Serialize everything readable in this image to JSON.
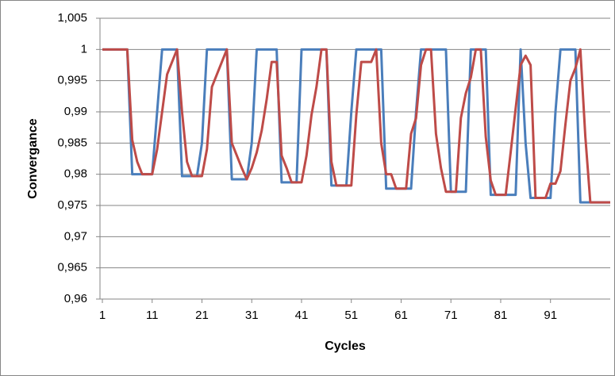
{
  "chart_data": {
    "type": "line",
    "x_label": "Cycles",
    "y_label": "Convergance",
    "x": [
      1,
      2,
      3,
      4,
      5,
      6,
      7,
      8,
      9,
      10,
      11,
      12,
      13,
      14,
      15,
      16,
      17,
      18,
      19,
      20,
      21,
      22,
      23,
      24,
      25,
      26,
      27,
      28,
      29,
      30,
      31,
      32,
      33,
      34,
      35,
      36,
      37,
      38,
      39,
      40,
      41,
      42,
      43,
      44,
      45,
      46,
      47,
      48,
      49,
      50,
      51,
      52,
      53,
      54,
      55,
      56,
      57,
      58,
      59,
      60,
      61,
      62,
      63,
      64,
      65,
      66,
      67,
      68,
      69,
      70,
      71,
      72,
      73,
      74,
      75,
      76,
      77,
      78,
      79,
      80,
      81,
      82,
      83,
      84,
      85,
      86,
      87,
      88,
      89,
      90,
      91,
      92,
      93,
      94,
      95,
      96,
      97,
      98,
      99,
      100,
      101,
      102,
      103
    ],
    "xlim": [
      1,
      103
    ],
    "xticks": [
      1,
      11,
      21,
      31,
      41,
      51,
      61,
      71,
      81,
      91
    ],
    "ylim": [
      0.96,
      1.005
    ],
    "yticks": [
      {
        "value": 0.96,
        "label": "0,96"
      },
      {
        "value": 0.965,
        "label": "0,965"
      },
      {
        "value": 0.97,
        "label": "0,97"
      },
      {
        "value": 0.975,
        "label": "0,975"
      },
      {
        "value": 0.98,
        "label": "0,98"
      },
      {
        "value": 0.985,
        "label": "0,985"
      },
      {
        "value": 0.99,
        "label": "0,99"
      },
      {
        "value": 0.995,
        "label": "0,995"
      },
      1,
      {
        "value": 1.005,
        "label": "1,005"
      }
    ],
    "grid": true,
    "series": [
      {
        "color": "#4a7ebb",
        "values": [
          1,
          1,
          1,
          1,
          1,
          1,
          0.98,
          0.98,
          0.98,
          0.98,
          0.98,
          0.99,
          1,
          1,
          1,
          1,
          0.9797,
          0.9797,
          0.9797,
          0.9797,
          0.985,
          1,
          1,
          1,
          1,
          1,
          0.9792,
          0.9792,
          0.9792,
          0.9792,
          0.985,
          1,
          1,
          1,
          1,
          1,
          0.9787,
          0.9787,
          0.9787,
          0.9787,
          1,
          1,
          1,
          1,
          1,
          1,
          0.9782,
          0.9782,
          0.9782,
          0.9782,
          0.99,
          1,
          1,
          1,
          1,
          1,
          1,
          0.9777,
          0.9777,
          0.9777,
          0.9777,
          0.9777,
          0.9777,
          0.99,
          1,
          1,
          1,
          1,
          1,
          1,
          0.9772,
          0.9772,
          0.9772,
          0.9772,
          1,
          1,
          1,
          1,
          0.9767,
          0.9767,
          0.9767,
          0.9767,
          0.9767,
          0.9767,
          1,
          0.985,
          0.9762,
          0.9762,
          0.9762,
          0.9762,
          0.9762,
          0.99,
          1,
          1,
          1,
          1,
          0.9755,
          0.9755,
          0.9755,
          0.9755,
          0.9755,
          0.9755,
          0.9755
        ]
      },
      {
        "color": "#be4b48",
        "values": [
          1,
          1,
          1,
          1,
          1,
          1,
          0.9855,
          0.982,
          0.98,
          0.98,
          0.98,
          0.984,
          0.99,
          0.996,
          0.998,
          1,
          0.99,
          0.982,
          0.9797,
          0.9797,
          0.9797,
          0.984,
          0.994,
          0.996,
          0.998,
          1,
          0.985,
          0.983,
          0.981,
          0.9792,
          0.981,
          0.9835,
          0.987,
          0.992,
          0.998,
          0.998,
          0.983,
          0.981,
          0.9787,
          0.9787,
          0.9787,
          0.983,
          0.9895,
          0.994,
          1,
          1,
          0.982,
          0.9782,
          0.9782,
          0.9782,
          0.9782,
          0.9895,
          0.998,
          0.998,
          0.998,
          1,
          0.985,
          0.98,
          0.98,
          0.9777,
          0.9777,
          0.9777,
          0.9865,
          0.989,
          0.9975,
          1,
          1,
          0.9865,
          0.981,
          0.9772,
          0.9772,
          0.9772,
          0.989,
          0.993,
          0.9955,
          1,
          1,
          0.986,
          0.979,
          0.9767,
          0.9767,
          0.9767,
          0.9835,
          0.9905,
          0.9975,
          0.999,
          0.9975,
          0.9762,
          0.9762,
          0.9762,
          0.9785,
          0.9785,
          0.9805,
          0.988,
          0.995,
          0.997,
          1,
          0.986,
          0.9755,
          0.9755,
          0.9755,
          0.9755,
          0.9755
        ]
      }
    ]
  }
}
